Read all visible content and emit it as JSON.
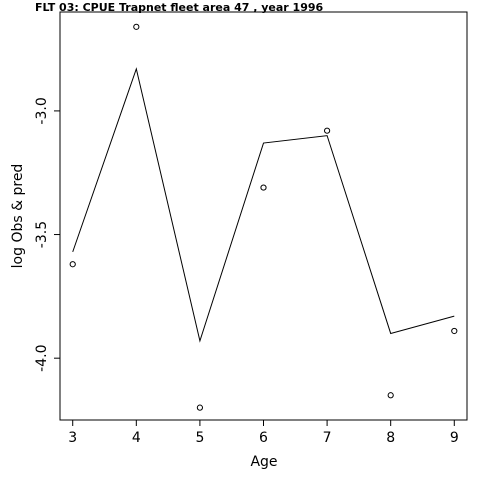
{
  "chart_data": {
    "type": "line",
    "title": "FLT 03:     CPUE        Trapnet   fleet         area         47              , year 1996",
    "xlabel": "Age",
    "ylabel": "log Obs & pred",
    "x": [
      3,
      4,
      5,
      6,
      7,
      8,
      9
    ],
    "x_ticks": [
      "3",
      "4",
      "5",
      "6",
      "7",
      "8",
      "9"
    ],
    "y_ticks": [
      "-4.0",
      "-3.5",
      "-3.0"
    ],
    "y_tick_values": [
      -4.0,
      -3.5,
      -3.0
    ],
    "xlim": [
      2.8,
      9.2
    ],
    "ylim": [
      -4.25,
      -2.6
    ],
    "series": [
      {
        "values": [
          -3.57,
          -2.83,
          -3.93,
          -3.13,
          -3.1,
          -3.9,
          -3.83
        ]
      },
      {
        "values": [
          -3.62,
          -2.66,
          -4.2,
          -3.31,
          -3.08,
          -4.15,
          -3.89
        ]
      }
    ],
    "grid": false
  }
}
